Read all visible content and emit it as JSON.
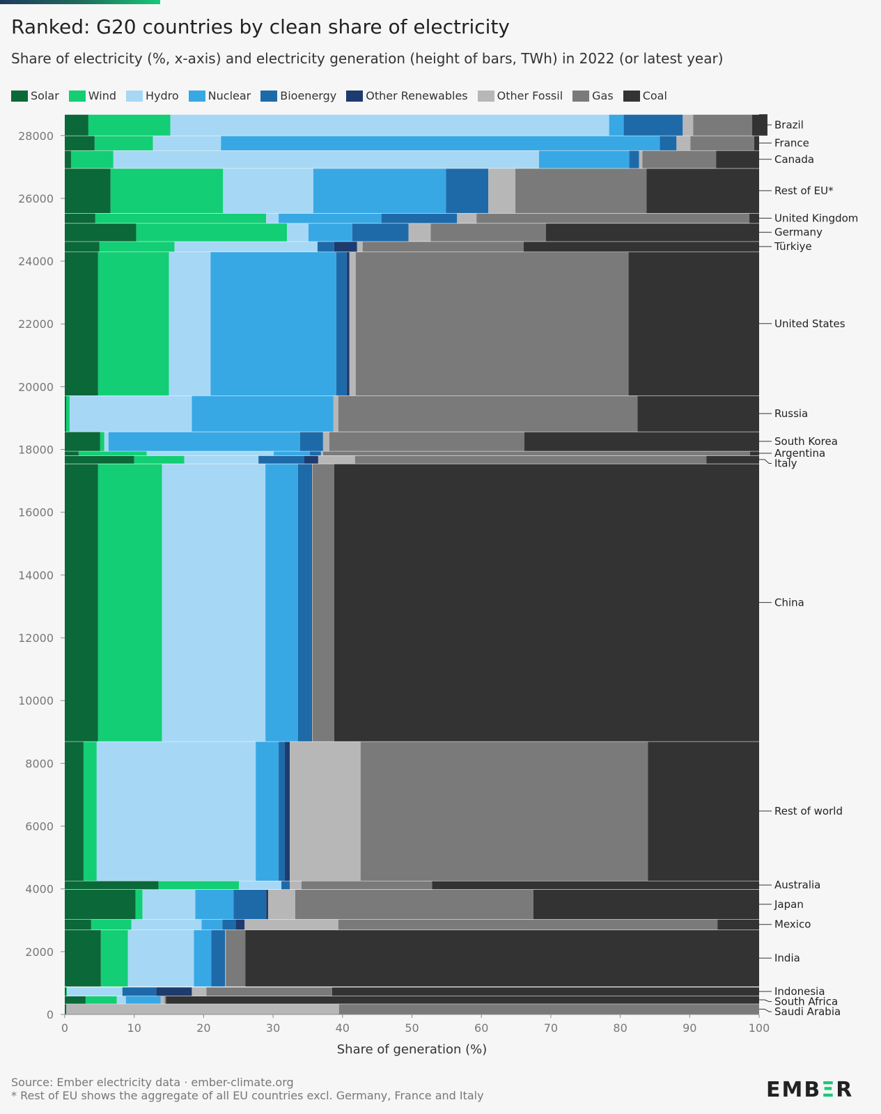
{
  "title": "Ranked: G20 countries by clean share of electricity",
  "subtitle": "Share of electricity (%, x-axis) and electricity generation (height of bars, TWh) in 2022 (or latest year)",
  "source_line1": "Source: Ember electricity data · ember-climate.org",
  "source_line2": "* Rest of EU shows the aggregate of all EU countries excl. Germany, France and Italy",
  "logo": "EMBER",
  "colors": {
    "Solar": "#0b6838",
    "Wind": "#13ce74",
    "Hydro": "#a6d8f5",
    "Nuclear": "#38a8e5",
    "Bioenergy": "#1e6aa8",
    "Other Renewables": "#1d3b6e",
    "Other Fossil": "#b7b7b7",
    "Gas": "#7a7a7a",
    "Coal": "#333333"
  },
  "chart_data": {
    "type": "bar",
    "subtype": "marimekko (variable-height stacked horizontal bars)",
    "title": "Ranked: G20 countries by clean share of electricity",
    "xlabel": "Share of generation (%)",
    "ylabel": "",
    "xlim": [
      0,
      100
    ],
    "ylim": [
      0,
      28500
    ],
    "xticks": [
      0,
      10,
      20,
      30,
      40,
      50,
      60,
      70,
      80,
      90,
      100
    ],
    "yticks": [
      0,
      2000,
      4000,
      6000,
      8000,
      10000,
      12000,
      14000,
      16000,
      18000,
      20000,
      22000,
      24000,
      26000,
      28000
    ],
    "grid": false,
    "legend_position": "top",
    "series_order": [
      "Solar",
      "Wind",
      "Hydro",
      "Nuclear",
      "Bioenergy",
      "Other Renewables",
      "Other Fossil",
      "Gas",
      "Coal"
    ],
    "countries": [
      {
        "name": "Saudi Arabia",
        "y0": 0,
        "y1": 340,
        "shares": [
          0.2,
          0,
          0,
          0,
          0,
          0,
          39.3,
          60.5,
          0
        ]
      },
      {
        "name": "South Africa",
        "y0": 340,
        "y1": 590,
        "shares": [
          3,
          4.5,
          1.3,
          5,
          0,
          0,
          0.6,
          0.2,
          85.4
        ]
      },
      {
        "name": "Indonesia",
        "y0": 590,
        "y1": 875,
        "shares": [
          0.2,
          0.1,
          8,
          0,
          4.9,
          5.1,
          2.1,
          18.1,
          61.5
        ]
      },
      {
        "name": "India",
        "y0": 890,
        "y1": 2700,
        "shares": [
          5.2,
          3.9,
          9.5,
          2.5,
          2,
          0,
          0.1,
          2.8,
          74
        ]
      },
      {
        "name": "Mexico",
        "y0": 2700,
        "y1": 3035,
        "shares": [
          3.8,
          5.8,
          10.1,
          3,
          1.9,
          1.3,
          13.5,
          54.6,
          6
        ]
      },
      {
        "name": "Japan",
        "y0": 3035,
        "y1": 3985,
        "shares": [
          10.2,
          1,
          7.6,
          5.5,
          4.7,
          0.3,
          3.9,
          34.3,
          32.5
        ]
      },
      {
        "name": "Australia",
        "y0": 3985,
        "y1": 4260,
        "shares": [
          13.5,
          11.6,
          6.1,
          0,
          1.2,
          0,
          1.7,
          18.8,
          47.1
        ]
      },
      {
        "name": "Rest of world",
        "y0": 4260,
        "y1": 8700,
        "shares": [
          2.7,
          1.9,
          22.9,
          3.3,
          0.9,
          0.7,
          10.2,
          41.4,
          16
        ]
      },
      {
        "name": "China",
        "y0": 8700,
        "y1": 17550,
        "shares": [
          4.8,
          9.2,
          14.9,
          4.7,
          1.9,
          0.1,
          0.1,
          3.1,
          61.2
        ]
      },
      {
        "name": "Italy",
        "y0": 17550,
        "y1": 17810,
        "shares": [
          10,
          7.2,
          10.7,
          0,
          6.6,
          2,
          5.3,
          50.6,
          7.6
        ]
      },
      {
        "name": "Argentina",
        "y0": 17810,
        "y1": 17950,
        "shares": [
          2,
          9.8,
          18.3,
          5.2,
          1.6,
          0,
          0.3,
          61.5,
          1.3
        ]
      },
      {
        "name": "South Korea",
        "y0": 17950,
        "y1": 18570,
        "shares": [
          5.1,
          0.6,
          0.6,
          27.6,
          3.3,
          0,
          0.9,
          28.1,
          33.8
        ]
      },
      {
        "name": "Russia",
        "y0": 18570,
        "y1": 19720,
        "shares": [
          0.2,
          0.5,
          17.6,
          20.4,
          0,
          0,
          0.7,
          43.1,
          17.5
        ]
      },
      {
        "name": "United States",
        "y0": 19720,
        "y1": 24300,
        "shares": [
          4.8,
          10.2,
          6,
          18.1,
          1.5,
          0.4,
          0.9,
          39.3,
          18.8
        ]
      },
      {
        "name": "Türkiye",
        "y0": 24300,
        "y1": 24630,
        "shares": [
          5,
          10.8,
          20.6,
          0,
          2.4,
          3.3,
          0.8,
          23.2,
          33.9
        ]
      },
      {
        "name": "Germany",
        "y0": 24630,
        "y1": 25210,
        "shares": [
          10.3,
          21.7,
          3.1,
          6.3,
          8.1,
          0,
          3.2,
          16.6,
          30.7
        ]
      },
      {
        "name": "United Kingdom",
        "y0": 25210,
        "y1": 25530,
        "shares": [
          4.4,
          24.6,
          1.8,
          14.8,
          10.9,
          0,
          2.8,
          39.3,
          1.4
        ]
      },
      {
        "name": "Rest of EU*",
        "y0": 25530,
        "y1": 26960,
        "shares": [
          6.6,
          16.2,
          13,
          19.1,
          6.1,
          0,
          3.9,
          18.9,
          16.2
        ]
      },
      {
        "name": "Canada",
        "y0": 26960,
        "y1": 27530,
        "shares": [
          0.9,
          6.1,
          61.3,
          13,
          1.4,
          0,
          0.5,
          10.6,
          6.2
        ]
      },
      {
        "name": "France",
        "y0": 27530,
        "y1": 28000,
        "shares": [
          4.3,
          8.4,
          9.8,
          63.2,
          2.4,
          0,
          2,
          9.2,
          0.7
        ]
      },
      {
        "name": "Brazil",
        "y0": 28000,
        "y1": 28680,
        "shares": [
          3.4,
          11.8,
          63.2,
          2.1,
          8.5,
          0,
          1.5,
          8.5,
          2.2
        ]
      }
    ]
  }
}
